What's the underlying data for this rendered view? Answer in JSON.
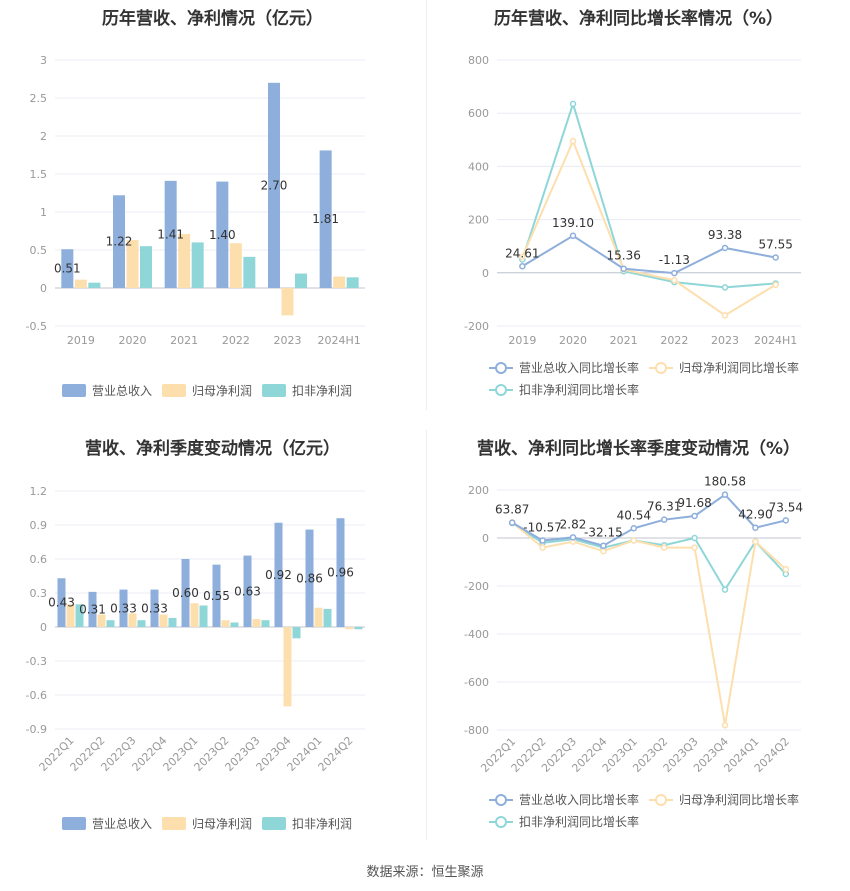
{
  "colors": {
    "revenue": "#8eaedb",
    "net_profit": "#fddfae",
    "deducted_profit": "#8fd6d8",
    "grid": "#e8ecf4",
    "axis_text": "#999999",
    "label_text": "#333333"
  },
  "source": "数据来源：恒生聚源",
  "chart_data": [
    {
      "id": "annual_values",
      "type": "bar",
      "title": "历年营收、净利情况（亿元）",
      "categories": [
        "2019",
        "2020",
        "2021",
        "2022",
        "2023",
        "2024H1"
      ],
      "ylim": [
        -0.5,
        3
      ],
      "yticks": [
        "-0.5",
        "0",
        "0.5",
        "1",
        "1.5",
        "2",
        "2.5",
        "3"
      ],
      "series": [
        {
          "name": "营业总收入",
          "values": [
            0.51,
            1.22,
            1.41,
            1.4,
            2.7,
            1.81
          ],
          "labels": [
            "0.51",
            "1.22",
            "1.41",
            "1.40",
            "2.70",
            "1.81"
          ]
        },
        {
          "name": "归母净利润",
          "values": [
            0.11,
            0.63,
            0.71,
            0.59,
            -0.36,
            0.15
          ]
        },
        {
          "name": "扣非净利润",
          "values": [
            0.07,
            0.55,
            0.6,
            0.41,
            0.19,
            0.14
          ]
        }
      ]
    },
    {
      "id": "annual_growth",
      "type": "line",
      "title": "历年营收、净利同比增长率情况（%）",
      "categories": [
        "2019",
        "2020",
        "2021",
        "2022",
        "2023",
        "2024H1"
      ],
      "ylim": [
        -200,
        800
      ],
      "yticks": [
        "-200",
        "0",
        "200",
        "400",
        "600",
        "800"
      ],
      "series": [
        {
          "name": "营业总收入同比增长率",
          "values": [
            24.61,
            139.1,
            15.36,
            -1.13,
            93.38,
            57.55
          ],
          "labels": [
            "24.61",
            "139.10",
            "15.36",
            "-1.13",
            "93.38",
            "57.55"
          ]
        },
        {
          "name": "归母净利润同比增长率",
          "values": [
            60,
            495,
            12,
            -28,
            -160,
            -45
          ]
        },
        {
          "name": "扣非净利润同比增长率",
          "values": [
            50,
            635,
            6,
            -35,
            -55,
            -40
          ]
        }
      ]
    },
    {
      "id": "quarterly_values",
      "type": "bar",
      "title": "营收、净利季度变动情况（亿元）",
      "categories": [
        "2022Q1",
        "2022Q2",
        "2022Q3",
        "2022Q4",
        "2023Q1",
        "2023Q2",
        "2023Q3",
        "2023Q4",
        "2024Q1",
        "2024Q2"
      ],
      "ylim": [
        -0.9,
        1.2
      ],
      "yticks": [
        "-0.9",
        "-0.6",
        "-0.3",
        "0",
        "0.3",
        "0.6",
        "0.9",
        "1.2"
      ],
      "series": [
        {
          "name": "营业总收入",
          "values": [
            0.43,
            0.31,
            0.33,
            0.33,
            0.6,
            0.55,
            0.63,
            0.92,
            0.86,
            0.96
          ],
          "labels": [
            "0.43",
            "0.31",
            "0.33",
            "0.33",
            "0.60",
            "0.55",
            "0.63",
            "0.92",
            "0.86",
            "0.96"
          ]
        },
        {
          "name": "归母净利润",
          "values": [
            0.2,
            0.11,
            0.12,
            0.11,
            0.21,
            0.06,
            0.07,
            -0.7,
            0.17,
            -0.02
          ]
        },
        {
          "name": "扣非净利润",
          "values": [
            0.2,
            0.06,
            0.06,
            0.08,
            0.19,
            0.04,
            0.06,
            -0.1,
            0.16,
            -0.02
          ]
        }
      ]
    },
    {
      "id": "quarterly_growth",
      "type": "line",
      "title": "营收、净利同比增长率季度变动情况（%）",
      "categories": [
        "2022Q1",
        "2022Q2",
        "2022Q3",
        "2022Q4",
        "2023Q1",
        "2023Q2",
        "2023Q3",
        "2023Q4",
        "2024Q1",
        "2024Q2"
      ],
      "ylim": [
        -800,
        200
      ],
      "yticks": [
        "-800",
        "-600",
        "-400",
        "-200",
        "0",
        "200"
      ],
      "series": [
        {
          "name": "营业总收入同比增长率",
          "values": [
            63.87,
            -10.57,
            2.82,
            -32.15,
            40.54,
            76.31,
            91.68,
            180.58,
            42.9,
            73.54
          ],
          "labels": [
            "63.87",
            "-10.57",
            "2.82",
            "-32.15",
            "40.54",
            "76.31",
            "91.68",
            "180.58",
            "42.90",
            "73.54"
          ]
        },
        {
          "name": "归母净利润同比增长率",
          "values": [
            65,
            -40,
            -15,
            -55,
            -10,
            -40,
            -40,
            -780,
            -15,
            -130
          ]
        },
        {
          "name": "扣非净利润同比增长率",
          "values": [
            62,
            -20,
            -5,
            -40,
            -10,
            -30,
            0,
            -215,
            -15,
            -150
          ]
        }
      ]
    }
  ]
}
